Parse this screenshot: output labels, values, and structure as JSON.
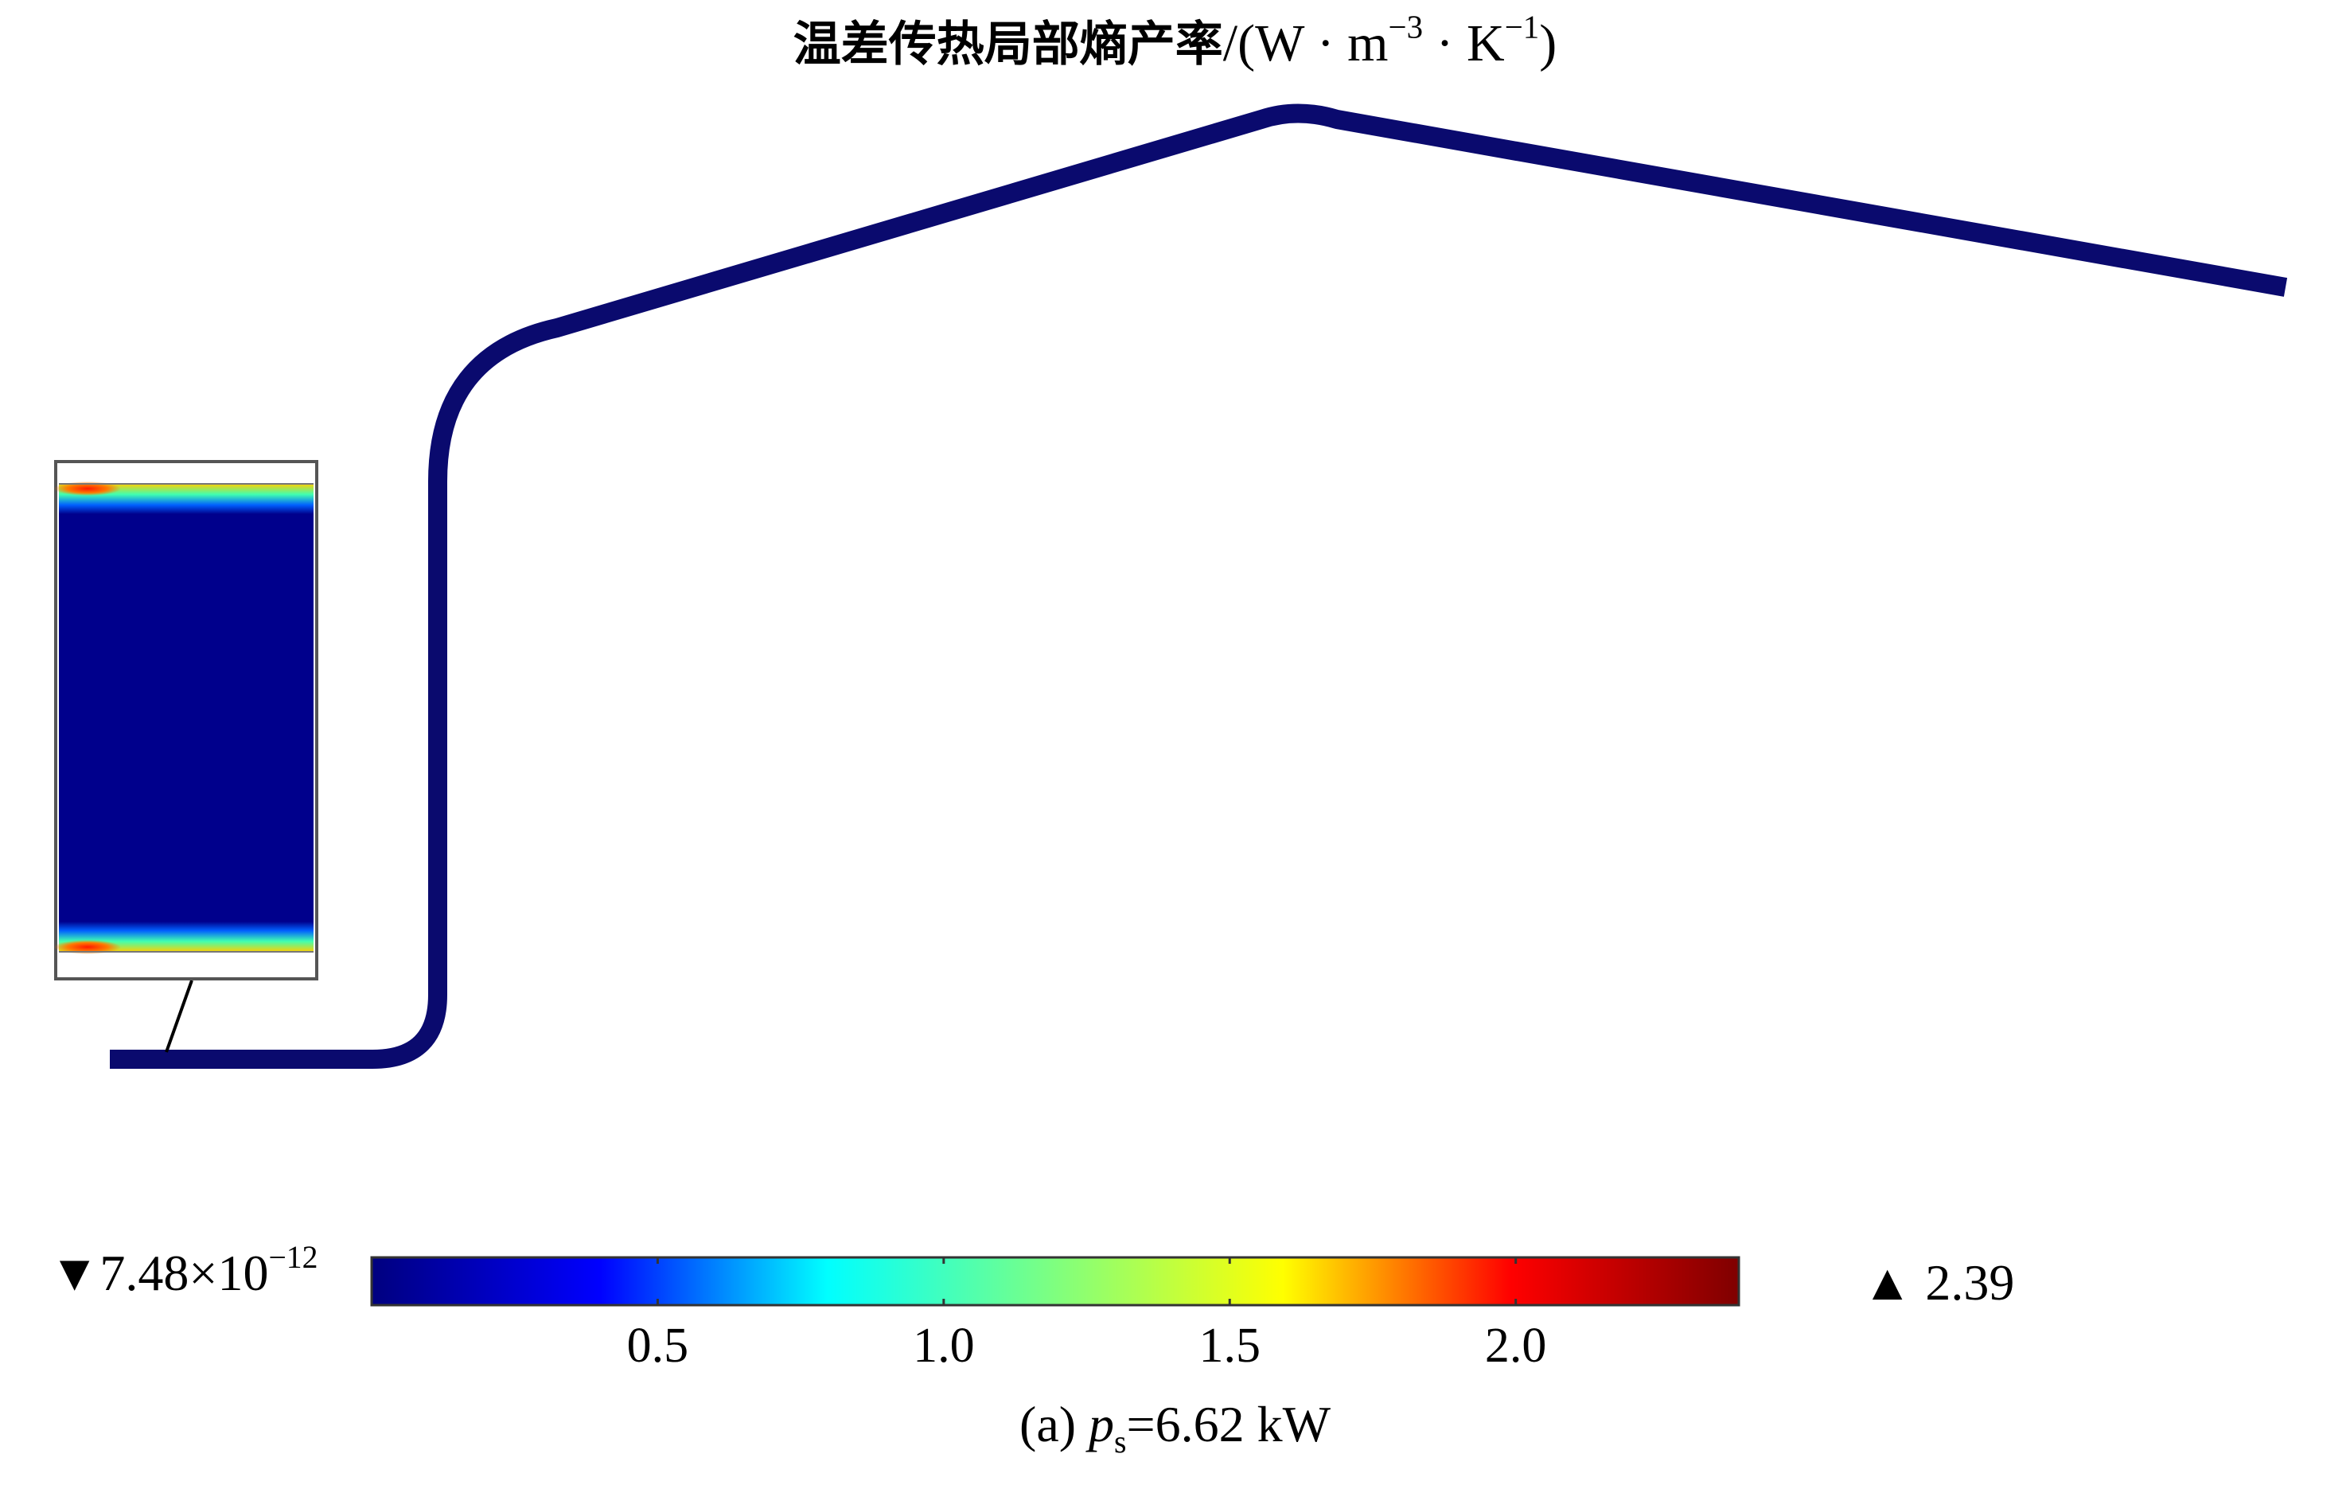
{
  "title": {
    "quantity_cn": "温差传热局部熵产率",
    "unit_prefix": "/(W · m",
    "unit_exp1": "−3",
    "unit_mid": " · K",
    "unit_exp2": "−1",
    "unit_suffix": ")"
  },
  "colorbar": {
    "min_marker": "▼",
    "min_mantissa": "7.48×10",
    "min_exponent": "−12",
    "max_marker": "▲",
    "max_value": "2.39",
    "range": [
      7.48e-12,
      2.39
    ],
    "ticks": [
      {
        "value": 0.5,
        "label": "0.5"
      },
      {
        "value": 1.0,
        "label": "1.0"
      },
      {
        "value": 1.5,
        "label": "1.5"
      },
      {
        "value": 2.0,
        "label": "2.0"
      }
    ],
    "colormap": [
      "#00007f",
      "#0000ff",
      "#00ffff",
      "#7fff7f",
      "#ffff00",
      "#ff0000",
      "#7f0000"
    ]
  },
  "caption": {
    "prefix": "(a) ",
    "symbol": "p",
    "subscript": "s",
    "value": "=6.62 kW"
  },
  "colors": {
    "tube": "#0a0a6e",
    "field_base": "#00008c",
    "inset_border": "#555555"
  }
}
